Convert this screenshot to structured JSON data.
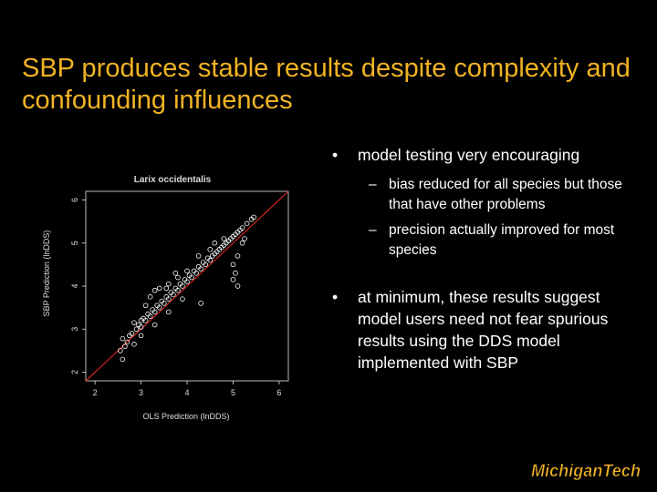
{
  "slide": {
    "title": "SBP produces stable results despite complexity and confounding influences"
  },
  "bullets": [
    {
      "text": "model testing very encouraging",
      "sub": [
        "bias reduced for all species but those that have other problems",
        "precision actually improved for most species"
      ]
    },
    {
      "text": "at minimum, these results suggest model users need not fear spurious results using the DDS model implemented with SBP",
      "sub": []
    }
  ],
  "chart_data": {
    "type": "scatter",
    "title": "Larix occidentalis",
    "xlabel": "OLS Prediction (lnDDS)",
    "ylabel": "SBP Prediction (lnDDS)",
    "xticks": [
      2,
      3,
      4,
      5,
      6
    ],
    "yticks": [
      2,
      3,
      4,
      5,
      6
    ],
    "xlim": [
      1.8,
      6.2
    ],
    "ylim": [
      1.8,
      6.2
    ],
    "reference_line": {
      "slope": 1,
      "intercept": 0,
      "color": "#cc2222"
    },
    "point_color": "#ffffff",
    "series": [
      {
        "points": [
          [
            2.55,
            2.5
          ],
          [
            2.6,
            2.78
          ],
          [
            2.65,
            2.6
          ],
          [
            2.7,
            2.7
          ],
          [
            2.75,
            2.85
          ],
          [
            2.8,
            2.9
          ],
          [
            2.85,
            2.65
          ],
          [
            2.9,
            3.0
          ],
          [
            2.95,
            3.1
          ],
          [
            3.0,
            3.05
          ],
          [
            3.0,
            3.2
          ],
          [
            3.05,
            3.25
          ],
          [
            3.1,
            3.2
          ],
          [
            3.15,
            3.35
          ],
          [
            3.2,
            3.3
          ],
          [
            3.25,
            3.45
          ],
          [
            3.3,
            3.4
          ],
          [
            3.35,
            3.55
          ],
          [
            3.4,
            3.5
          ],
          [
            3.45,
            3.65
          ],
          [
            3.5,
            3.6
          ],
          [
            3.55,
            3.75
          ],
          [
            3.6,
            3.7
          ],
          [
            3.65,
            3.85
          ],
          [
            3.7,
            3.8
          ],
          [
            3.75,
            3.95
          ],
          [
            3.8,
            3.9
          ],
          [
            3.85,
            4.05
          ],
          [
            3.9,
            4.0
          ],
          [
            3.95,
            4.15
          ],
          [
            4.0,
            4.1
          ],
          [
            4.05,
            4.25
          ],
          [
            4.1,
            4.2
          ],
          [
            4.15,
            4.35
          ],
          [
            4.2,
            4.3
          ],
          [
            4.25,
            4.45
          ],
          [
            4.3,
            4.4
          ],
          [
            4.35,
            4.55
          ],
          [
            4.4,
            4.5
          ],
          [
            4.45,
            4.65
          ],
          [
            4.5,
            4.6
          ],
          [
            4.55,
            4.7
          ],
          [
            4.6,
            4.75
          ],
          [
            4.65,
            4.8
          ],
          [
            4.7,
            4.85
          ],
          [
            4.75,
            4.9
          ],
          [
            4.8,
            4.95
          ],
          [
            4.85,
            5.0
          ],
          [
            4.9,
            5.05
          ],
          [
            4.95,
            5.1
          ],
          [
            5.0,
            5.15
          ],
          [
            5.05,
            5.2
          ],
          [
            5.1,
            5.25
          ],
          [
            5.15,
            5.3
          ],
          [
            5.2,
            5.35
          ],
          [
            5.3,
            5.45
          ],
          [
            5.4,
            5.55
          ],
          [
            5.45,
            5.6
          ],
          [
            3.3,
            3.9
          ],
          [
            3.2,
            3.75
          ],
          [
            3.4,
            3.95
          ],
          [
            3.6,
            4.05
          ],
          [
            3.8,
            4.2
          ],
          [
            4.0,
            4.35
          ],
          [
            3.75,
            4.3
          ],
          [
            3.55,
            3.95
          ],
          [
            2.85,
            3.15
          ],
          [
            3.1,
            3.55
          ],
          [
            4.3,
            3.6
          ],
          [
            5.05,
            4.3
          ],
          [
            5.0,
            4.5
          ],
          [
            5.1,
            4.7
          ],
          [
            5.1,
            4.0
          ],
          [
            5.0,
            4.15
          ],
          [
            3.6,
            3.4
          ],
          [
            3.9,
            3.7
          ],
          [
            2.6,
            2.3
          ],
          [
            4.5,
            4.85
          ],
          [
            4.8,
            5.1
          ],
          [
            4.25,
            4.7
          ],
          [
            4.6,
            5.0
          ],
          [
            5.2,
            5.0
          ],
          [
            5.25,
            5.1
          ],
          [
            3.0,
            2.85
          ],
          [
            3.3,
            3.1
          ]
        ]
      }
    ]
  },
  "logo": {
    "text": "MichiganTech",
    "colors": {
      "fill": "#f0b323",
      "outline": "#000000"
    }
  },
  "colors": {
    "background": "#000000",
    "title": "#f0b323",
    "body_text": "#ffffff"
  }
}
